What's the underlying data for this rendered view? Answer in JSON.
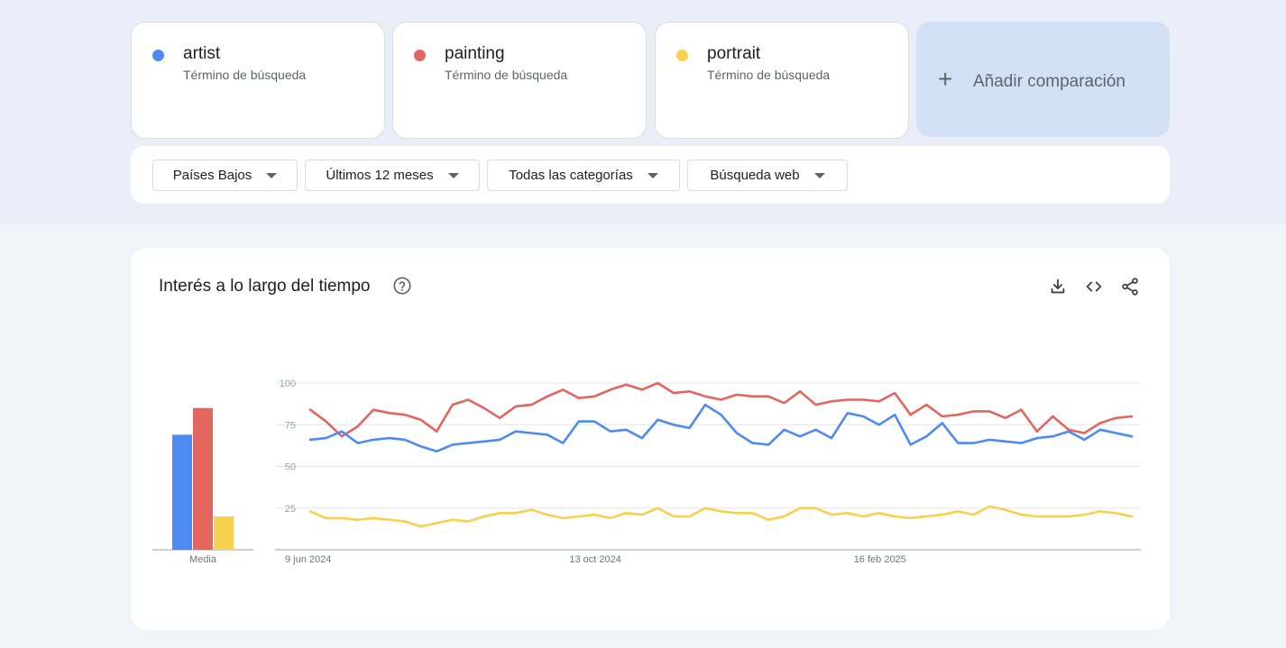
{
  "terms": [
    {
      "name": "artist",
      "type_label": "Término de búsqueda",
      "color": "#4e8af3"
    },
    {
      "name": "painting",
      "type_label": "Término de búsqueda",
      "color": "#e3665e"
    },
    {
      "name": "portrait",
      "type_label": "Término de búsqueda",
      "color": "#f9d04e"
    }
  ],
  "add_comparison": {
    "label": "Añadir comparación",
    "icon": "plus-icon"
  },
  "filters": {
    "region": "Países Bajos",
    "time_range": "Últimos 12 meses",
    "category": "Todas las categorías",
    "search_type": "Búsqueda web"
  },
  "chart_card": {
    "title": "Interés a lo largo del tiempo",
    "help_icon": "help-circle-icon",
    "actions": [
      "download-icon",
      "embed-code-icon",
      "share-icon"
    ]
  },
  "chart_data": [
    {
      "type": "bar",
      "title": "Media",
      "categories": [
        "artist",
        "painting",
        "portrait"
      ],
      "values": [
        69,
        85,
        20
      ],
      "colors": [
        "#4e8af3",
        "#e3665e",
        "#f9d04e"
      ],
      "xlabel": "Media",
      "ylim": [
        0,
        100
      ]
    },
    {
      "type": "line",
      "title": "Interés a lo largo del tiempo",
      "ylim": [
        0,
        100
      ],
      "yticks": [
        25,
        50,
        75,
        100
      ],
      "xtick_labels": [
        {
          "index": 0,
          "label": "9 jun 2024"
        },
        {
          "index": 18,
          "label": "13 oct 2024"
        },
        {
          "index": 36,
          "label": "16 feb 2025"
        }
      ],
      "series": [
        {
          "name": "artist",
          "color": "#4e8af3",
          "values": [
            66,
            67,
            71,
            64,
            66,
            67,
            66,
            62,
            59,
            63,
            64,
            65,
            66,
            71,
            70,
            69,
            64,
            77,
            77,
            71,
            72,
            67,
            78,
            75,
            73,
            87,
            81,
            70,
            64,
            63,
            72,
            68,
            72,
            67,
            82,
            80,
            75,
            81,
            63,
            68,
            76,
            64,
            64,
            66,
            65,
            64,
            67,
            68,
            71,
            66,
            72,
            70,
            68
          ]
        },
        {
          "name": "painting",
          "color": "#e3665e",
          "values": [
            84,
            77,
            68,
            74,
            84,
            82,
            81,
            78,
            71,
            87,
            90,
            85,
            79,
            86,
            87,
            92,
            96,
            91,
            92,
            96,
            99,
            96,
            100,
            94,
            95,
            92,
            90,
            93,
            92,
            92,
            88,
            95,
            87,
            89,
            90,
            90,
            89,
            94,
            81,
            87,
            80,
            81,
            83,
            83,
            79,
            84,
            71,
            80,
            72,
            70,
            76,
            79,
            80
          ]
        },
        {
          "name": "portrait",
          "color": "#f9d04e",
          "values": [
            23,
            19,
            19,
            18,
            19,
            18,
            17,
            14,
            16,
            18,
            17,
            20,
            22,
            22,
            24,
            21,
            19,
            20,
            21,
            19,
            22,
            21,
            25,
            20,
            20,
            25,
            23,
            22,
            22,
            18,
            20,
            25,
            25,
            21,
            22,
            20,
            22,
            20,
            19,
            20,
            21,
            23,
            21,
            26,
            24,
            21,
            20,
            20,
            20,
            21,
            23,
            22,
            20
          ]
        }
      ]
    }
  ]
}
